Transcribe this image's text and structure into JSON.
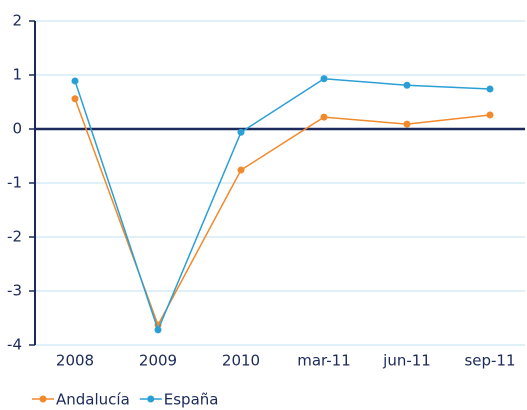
{
  "chart_data": {
    "type": "line",
    "categories": [
      "2008",
      "2009",
      "2010",
      "mar-11",
      "jun-11",
      "sep-11"
    ],
    "series": [
      {
        "name": "Andalucía",
        "color": "#f08a2c",
        "values": [
          0.56,
          -3.63,
          -0.76,
          0.22,
          0.09,
          0.26
        ]
      },
      {
        "name": "España",
        "color": "#2a9fd6",
        "values": [
          0.89,
          -3.72,
          -0.06,
          0.93,
          0.81,
          0.74
        ]
      }
    ],
    "ylim": [
      -4,
      2
    ],
    "yticks": [
      -4,
      -3,
      -2,
      -1,
      0,
      1,
      2
    ],
    "grid": true
  }
}
